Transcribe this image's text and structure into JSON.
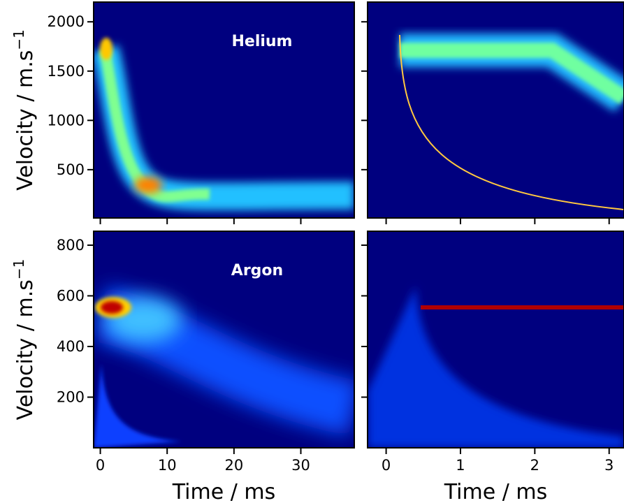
{
  "chart_data": [
    {
      "type": "heatmap",
      "annotation": "Helium",
      "ylabel": {
        "text": "Velocity / m.s",
        "superscript": "−1"
      },
      "xlim": [
        -1,
        38
      ],
      "xticks": [
        0,
        10,
        20,
        30
      ],
      "ylim": [
        10,
        2200
      ],
      "yticks": [
        500,
        1000,
        1500,
        2000
      ]
    },
    {
      "type": "heatmap",
      "xlim": [
        -0.25,
        3.2
      ],
      "xticks": [
        0,
        1,
        2,
        3
      ],
      "ylim": [
        10,
        2200
      ],
      "yticks": [
        500,
        1000,
        1500,
        2000
      ]
    },
    {
      "type": "heatmap",
      "annotation": "Argon",
      "ylabel": {
        "text": "Velocity / m.s",
        "superscript": "−1"
      },
      "xlabel": "Time / ms",
      "xlim": [
        -1,
        38
      ],
      "xticks": [
        0,
        10,
        20,
        30
      ],
      "ylim": [
        0,
        855
      ],
      "yticks": [
        200,
        400,
        600,
        800
      ]
    },
    {
      "type": "heatmap",
      "xlabel": "Time / ms",
      "xlim": [
        -0.25,
        3.2
      ],
      "xticks": [
        0,
        1,
        2,
        3
      ],
      "ylim": [
        0,
        855
      ],
      "yticks": [
        200,
        400,
        600,
        800
      ]
    }
  ]
}
